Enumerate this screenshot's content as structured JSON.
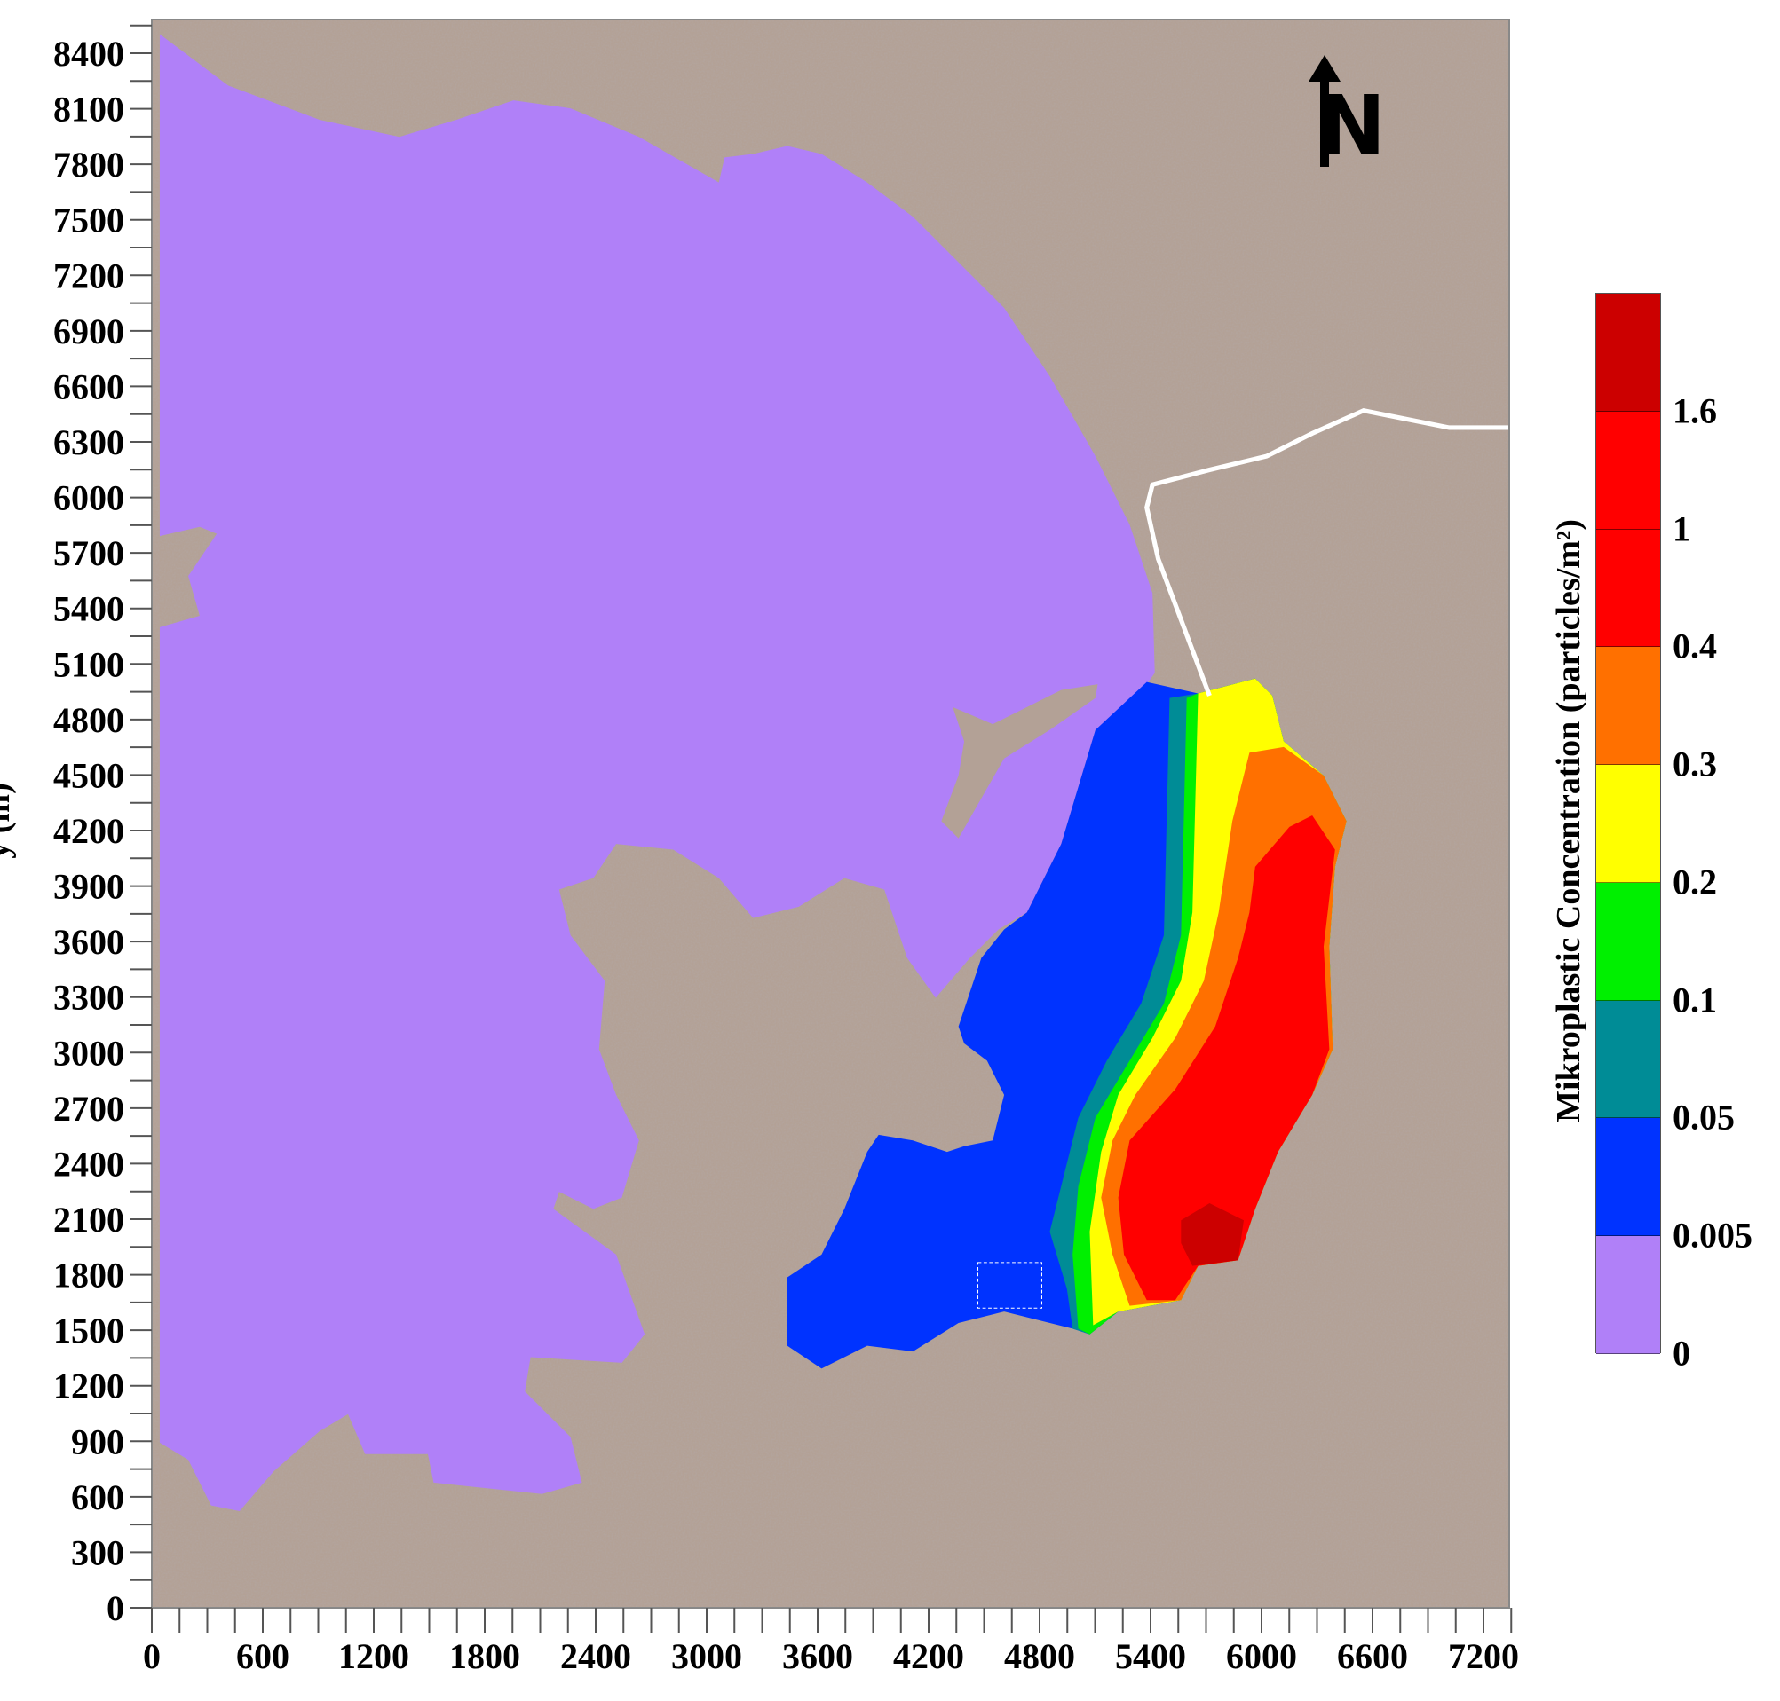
{
  "map": {
    "x_axis": {
      "label": "",
      "range": [
        0,
        7350
      ],
      "ticks": [
        "0",
        "600",
        "1200",
        "1800",
        "2400",
        "3000",
        "3600",
        "4200",
        "4800",
        "5400",
        "6000",
        "6600",
        "7200"
      ],
      "minor_step": 150
    },
    "y_axis": {
      "label": "y (m)",
      "range": [
        0,
        8580
      ],
      "ticks": [
        "0",
        "300",
        "600",
        "900",
        "1200",
        "1500",
        "1800",
        "2100",
        "2400",
        "2700",
        "3000",
        "3300",
        "3600",
        "3900",
        "4200",
        "4500",
        "4800",
        "5100",
        "5400",
        "5700",
        "6000",
        "6300",
        "6600",
        "6900",
        "7200",
        "7500",
        "7800",
        "8100",
        "8400"
      ],
      "minor_step": 150
    },
    "north_label": "N",
    "colorbar": {
      "title": "Mikroplastic Concentration (particles/m²)",
      "levels": [
        "0",
        "0.005",
        "0.05",
        "0.1",
        "0.2",
        "0.3",
        "0.4",
        "1",
        "1.6"
      ],
      "colors": [
        "#b080f8",
        "#0033ff",
        "#008c96",
        "#00f000",
        "#ffff00",
        "#ff7000",
        "#ff0000",
        "#ff0000",
        "#cc0000"
      ]
    },
    "colors": {
      "land": "#b3a196",
      "water_zero": "#b080f8",
      "road": "#ffffff"
    }
  }
}
